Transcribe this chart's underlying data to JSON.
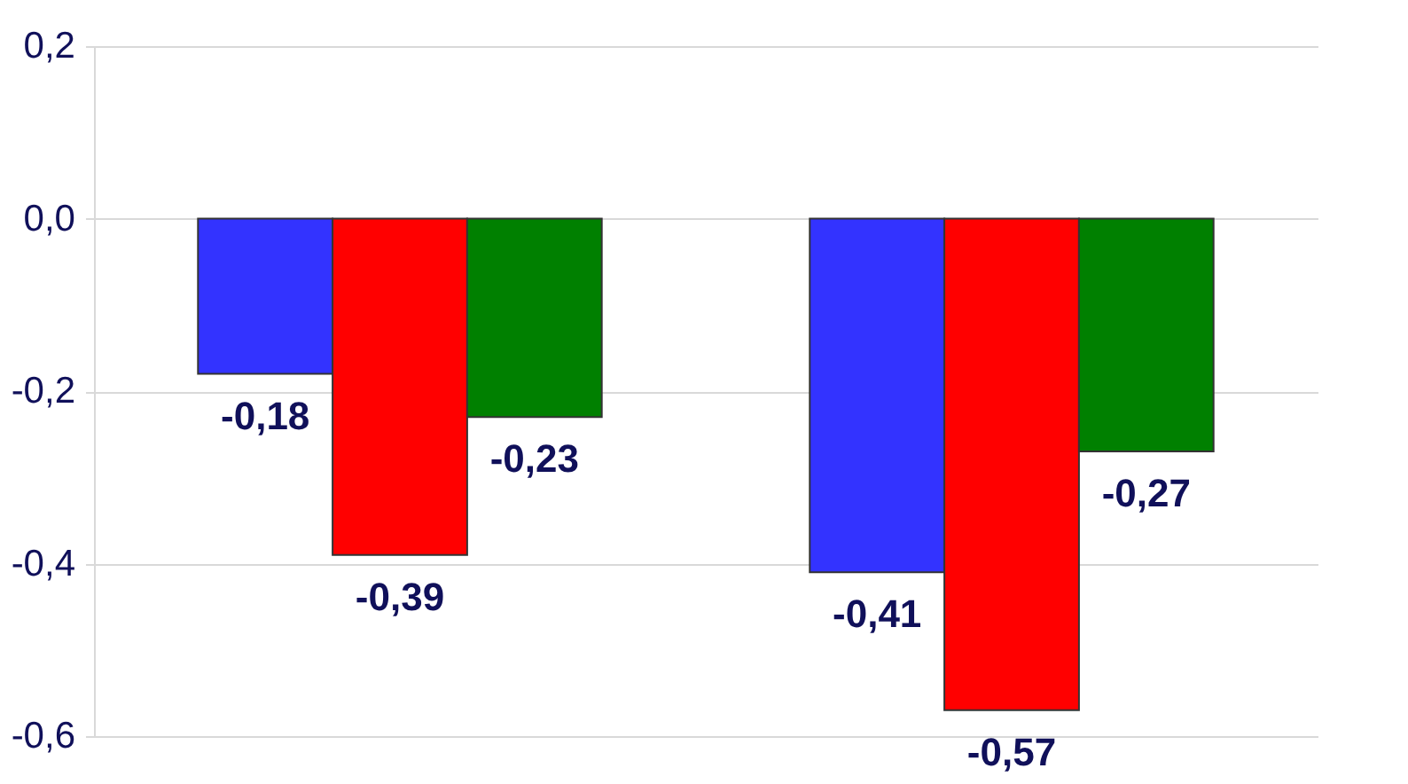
{
  "chart_data": {
    "type": "bar",
    "categories": [
      null,
      null
    ],
    "series": [
      {
        "color": "#3333ff",
        "values": [
          -0.18,
          -0.41
        ],
        "value_labels": [
          "-0,18",
          "-0,41"
        ]
      },
      {
        "color": "#ff0000",
        "values": [
          -0.39,
          -0.57
        ],
        "value_labels": [
          "-0,39",
          "-0,57"
        ]
      },
      {
        "color": "#008000",
        "values": [
          -0.23,
          -0.27
        ],
        "value_labels": [
          "-0,23",
          "-0,27"
        ]
      }
    ],
    "ylim": [
      -0.6,
      0.2
    ],
    "yticks": [
      {
        "value": 0.2,
        "label": "0,2"
      },
      {
        "value": 0.0,
        "label": "0,0"
      },
      {
        "value": -0.2,
        "label": "-0,2"
      },
      {
        "value": -0.4,
        "label": "-0,4"
      },
      {
        "value": -0.6,
        "label": "-0,6"
      }
    ],
    "grid": "y"
  }
}
